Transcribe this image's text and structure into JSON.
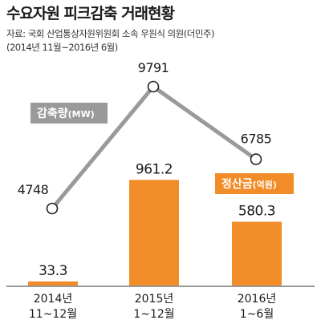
{
  "header": {
    "title": "수요자원 피크감축 거래현황",
    "source_line1": "자료: 국회 산업통상자원위원회 소속 우원식 의원(더민주)",
    "source_line2": "(2014년 11월~2016년 6월)"
  },
  "colors": {
    "bar": "#f28c28",
    "line": "#9a9a9a",
    "line_tag": "#9a9a9a",
    "bar_tag": "#f28c28"
  },
  "chart_data": {
    "type": "bar",
    "categories": [
      [
        "2014년",
        "11~12월"
      ],
      [
        "2015년",
        "1~12월"
      ],
      [
        "2016년",
        "1~6월"
      ]
    ],
    "series": [
      {
        "name": "정산금",
        "unit": "억원",
        "kind": "bar",
        "values": [
          33.3,
          961.2,
          580.3
        ],
        "labels": [
          "33.3",
          "961.2",
          "580.3"
        ]
      },
      {
        "name": "감축량",
        "unit": "MW",
        "kind": "line",
        "values": [
          4748,
          9791,
          6785
        ],
        "labels": [
          "4748",
          "9791",
          "6785"
        ]
      }
    ],
    "title": "수요자원 피크감축 거래현황",
    "xlabel": "",
    "ylabel": "",
    "grid": false,
    "legend": "inline tags"
  }
}
